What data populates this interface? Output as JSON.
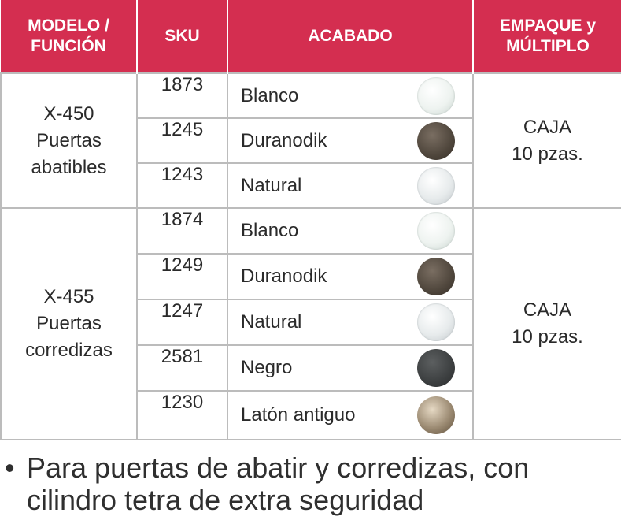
{
  "headers": {
    "model_line1": "MODELO /",
    "model_line2": "FUNCIÓN",
    "sku": "SKU",
    "finish": "ACABADO",
    "pack_line1": "EMPAQUE y",
    "pack_line2": "MÚLTIPLO"
  },
  "colors": {
    "header_bg": "#d42e50",
    "header_text": "#ffffff",
    "border": "#bcbcbc"
  },
  "groups": [
    {
      "model_lines": [
        "X-450",
        "Puertas",
        "abatibles"
      ],
      "pack_lines": [
        "CAJA",
        "10 pzas."
      ],
      "rows": [
        {
          "sku": "1873",
          "finish": "Blanco",
          "swatch": "blanco"
        },
        {
          "sku": "1245",
          "finish": "Duranodik",
          "swatch": "duranodik"
        },
        {
          "sku": "1243",
          "finish": "Natural",
          "swatch": "natural"
        }
      ]
    },
    {
      "model_lines": [
        "X-455",
        "Puertas",
        "corredizas"
      ],
      "pack_lines": [
        "CAJA",
        "10 pzas."
      ],
      "rows": [
        {
          "sku": "1874",
          "finish": "Blanco",
          "swatch": "blanco"
        },
        {
          "sku": "1249",
          "finish": "Duranodik",
          "swatch": "duranodik"
        },
        {
          "sku": "1247",
          "finish": "Natural",
          "swatch": "natural"
        },
        {
          "sku": "2581",
          "finish": "Negro",
          "swatch": "negro"
        },
        {
          "sku": "1230",
          "finish": "Latón antiguo",
          "swatch": "laton"
        }
      ]
    }
  ],
  "note": {
    "bullet": "•",
    "line1": "Para puertas de abatir y corredizas, con",
    "line2": "cilindro tetra de extra seguridad"
  }
}
